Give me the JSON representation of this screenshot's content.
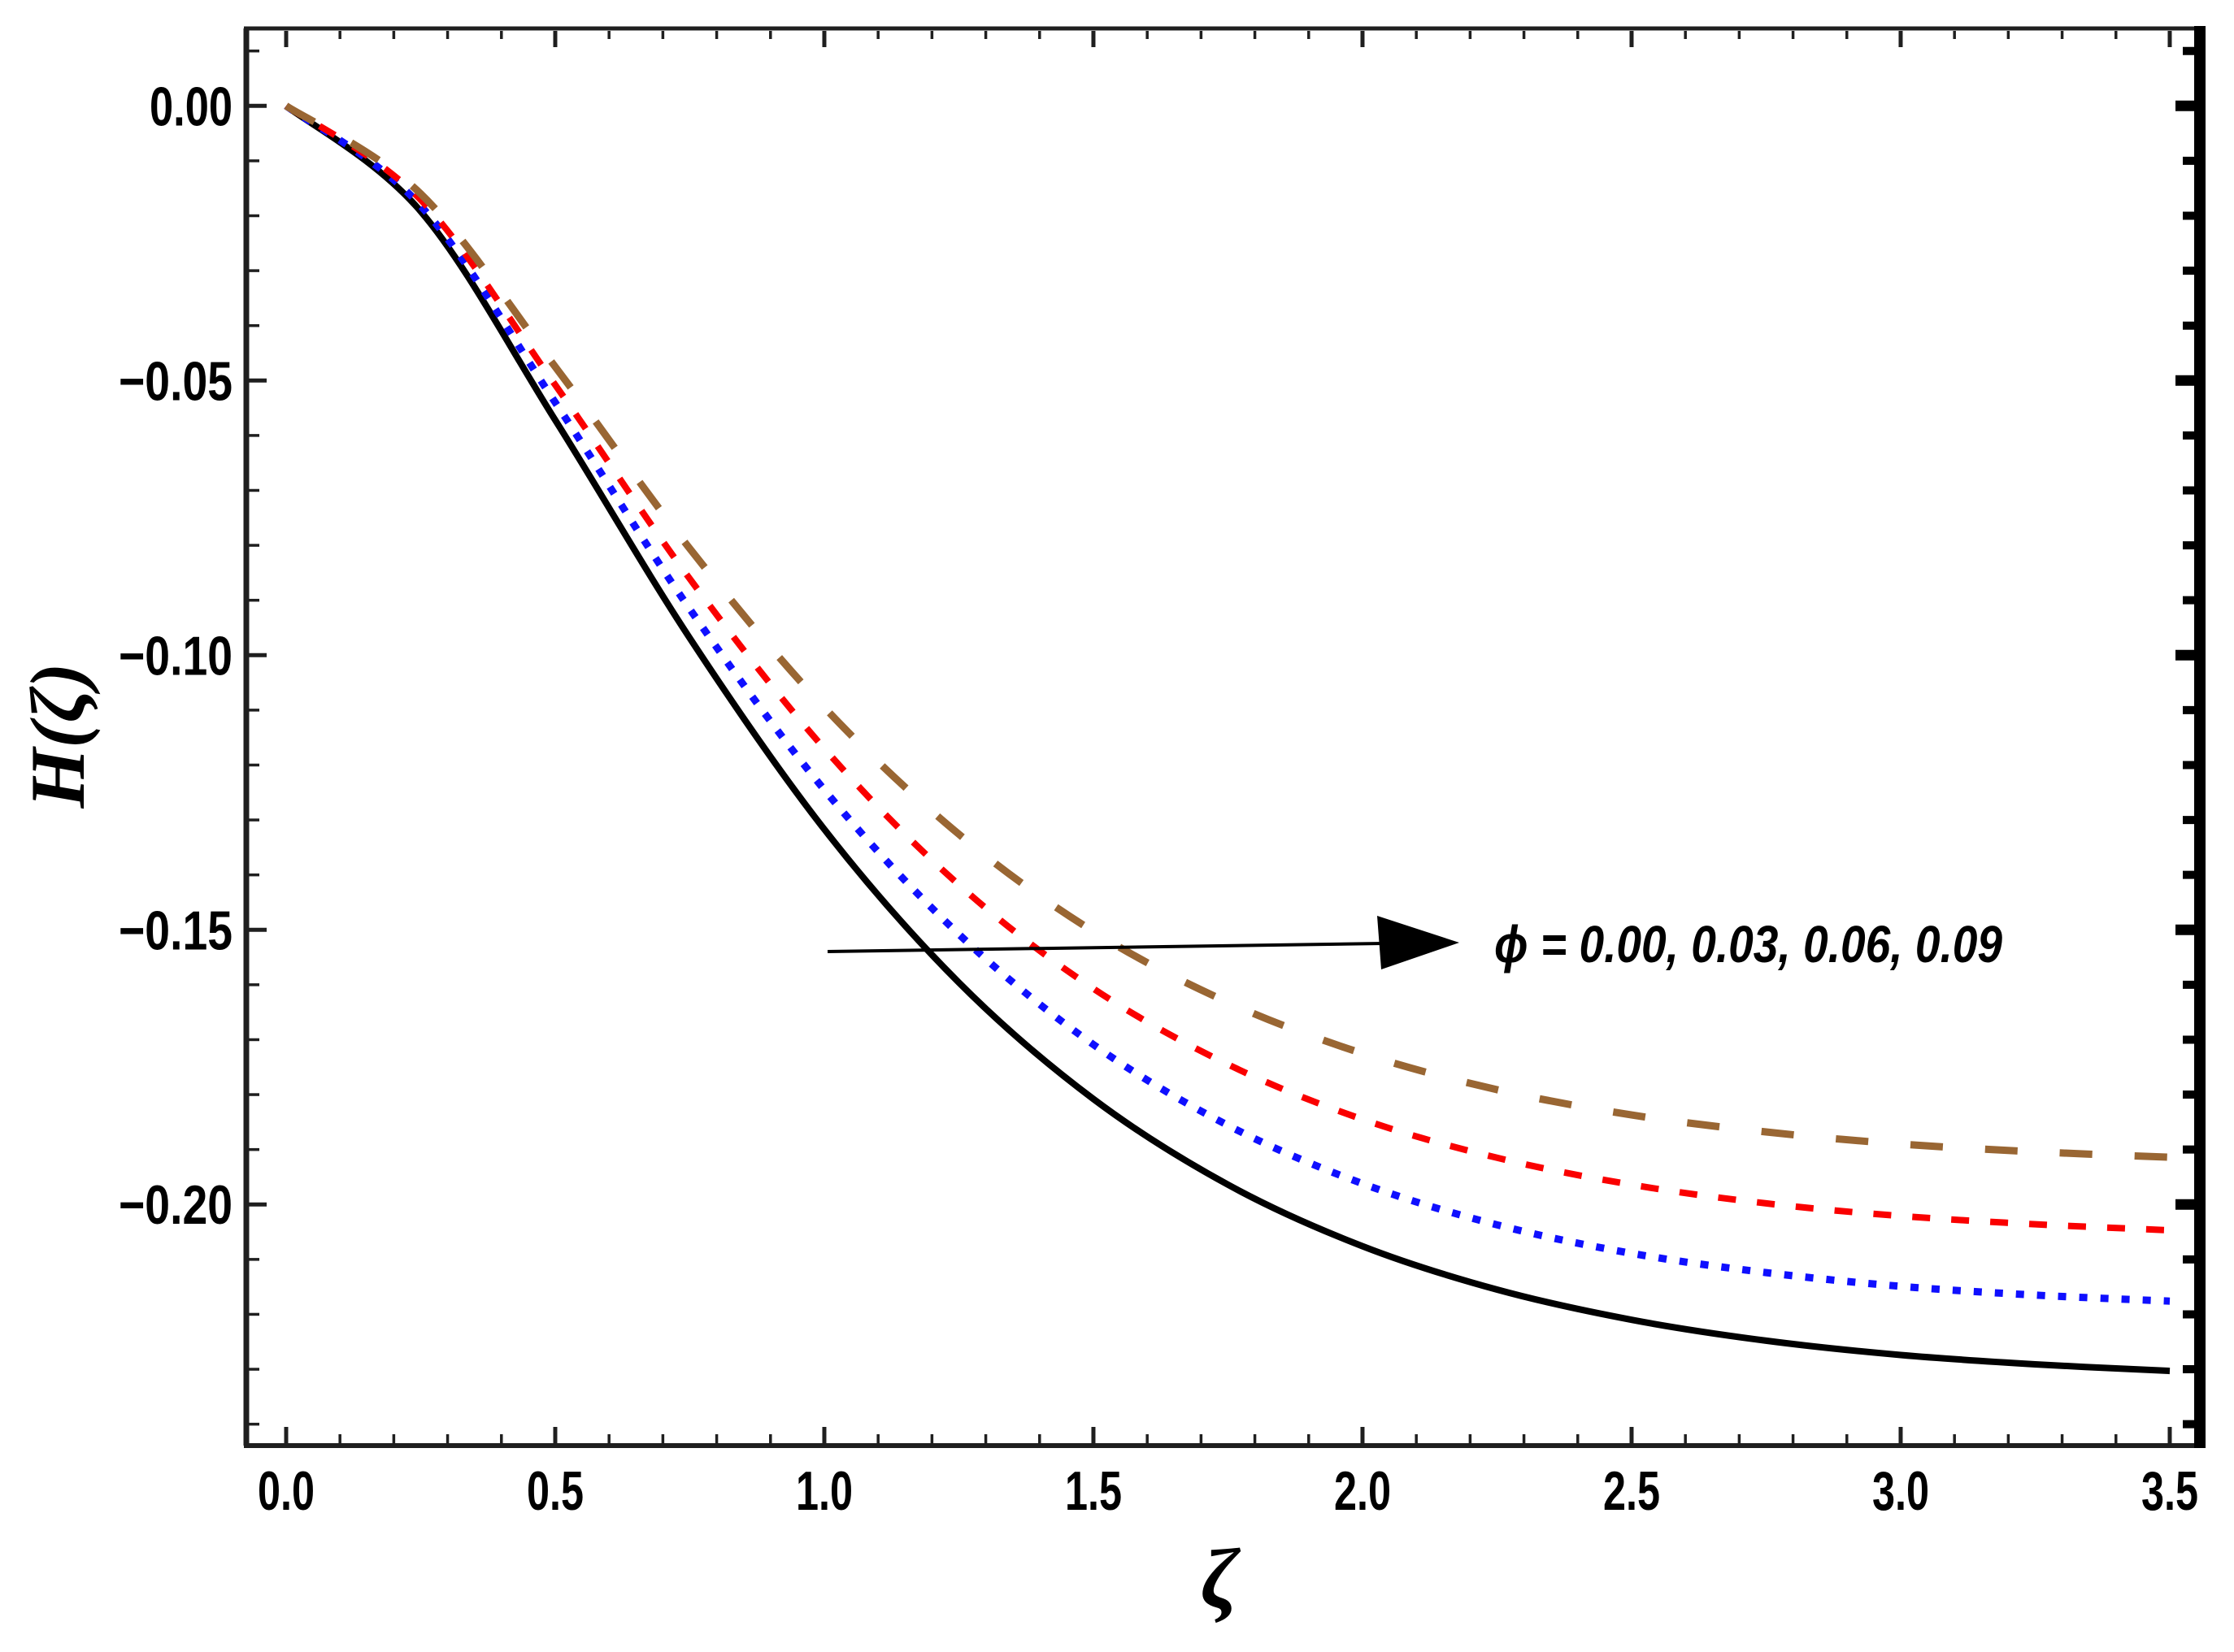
{
  "figure": {
    "background": "#ffffff",
    "frame_color": "#1f1f1f",
    "xlabel": "ζ",
    "ylabel": "H(ζ)"
  },
  "chart_data": {
    "type": "line",
    "title": "",
    "xlabel": "ζ",
    "ylabel": "H(ζ)",
    "xlim": [
      -0.074,
      3.565
    ],
    "ylim": [
      -0.2439,
      0.0141
    ],
    "grid": false,
    "legend": "none",
    "x_ticks": {
      "values": [
        0.0,
        0.5,
        1.0,
        1.5,
        2.0,
        2.5,
        3.0,
        3.5
      ],
      "labels": [
        "0.0",
        "0.5",
        "1.0",
        "1.5",
        "2.0",
        "2.5",
        "3.0",
        "3.5"
      ],
      "minor_step": 0.1
    },
    "y_ticks": {
      "values": [
        0.0,
        -0.05,
        -0.1,
        -0.15,
        -0.2
      ],
      "labels": [
        "0.00",
        "−0.05",
        "−0.10",
        "−0.15",
        "−0.20"
      ],
      "minor_step": 0.01
    },
    "x": [
      0.0,
      0.25,
      0.5,
      0.75,
      1.0,
      1.25,
      1.5,
      1.75,
      2.0,
      2.25,
      2.5,
      2.75,
      3.0,
      3.25,
      3.5
    ],
    "series": [
      {
        "name": "ϕ = 0.00",
        "phi": 0.0,
        "color": "#000000",
        "style": "solid",
        "stroke_width": 8,
        "values": [
          0.0,
          -0.0192,
          -0.0572,
          -0.0969,
          -0.1317,
          -0.1596,
          -0.1808,
          -0.1964,
          -0.2076,
          -0.2155,
          -0.221,
          -0.2248,
          -0.2274,
          -0.2291,
          -0.2303
        ]
      },
      {
        "name": "ϕ = 0.03",
        "phi": 0.03,
        "color": "#0f0fff",
        "style": "dotted",
        "stroke_width": 9,
        "values": [
          0.0,
          -0.0182,
          -0.054,
          -0.0916,
          -0.1245,
          -0.1508,
          -0.1709,
          -0.1856,
          -0.1962,
          -0.2037,
          -0.2089,
          -0.2124,
          -0.2149,
          -0.2165,
          -0.2176
        ]
      },
      {
        "name": "ϕ = 0.06",
        "phi": 0.06,
        "color": "#fa0000",
        "style": "dashed",
        "stroke_width": 8,
        "values": [
          0.0,
          -0.0171,
          -0.0508,
          -0.0861,
          -0.117,
          -0.1418,
          -0.1607,
          -0.1745,
          -0.1845,
          -0.1915,
          -0.1964,
          -0.1998,
          -0.2021,
          -0.2036,
          -0.2047
        ]
      },
      {
        "name": "ϕ = 0.09",
        "phi": 0.09,
        "color": "#996633",
        "style": "long-dashed",
        "stroke_width": 9,
        "values": [
          0.0,
          -0.016,
          -0.0475,
          -0.0806,
          -0.1095,
          -0.1326,
          -0.1503,
          -0.1632,
          -0.1725,
          -0.1791,
          -0.1837,
          -0.1868,
          -0.189,
          -0.1904,
          -0.1914
        ]
      }
    ],
    "annotation": {
      "text": "ϕ = 0.00, 0.03, 0.06, 0.09",
      "arrow_direction": "arrow points toward increasing ϕ",
      "color": "#000000"
    }
  }
}
